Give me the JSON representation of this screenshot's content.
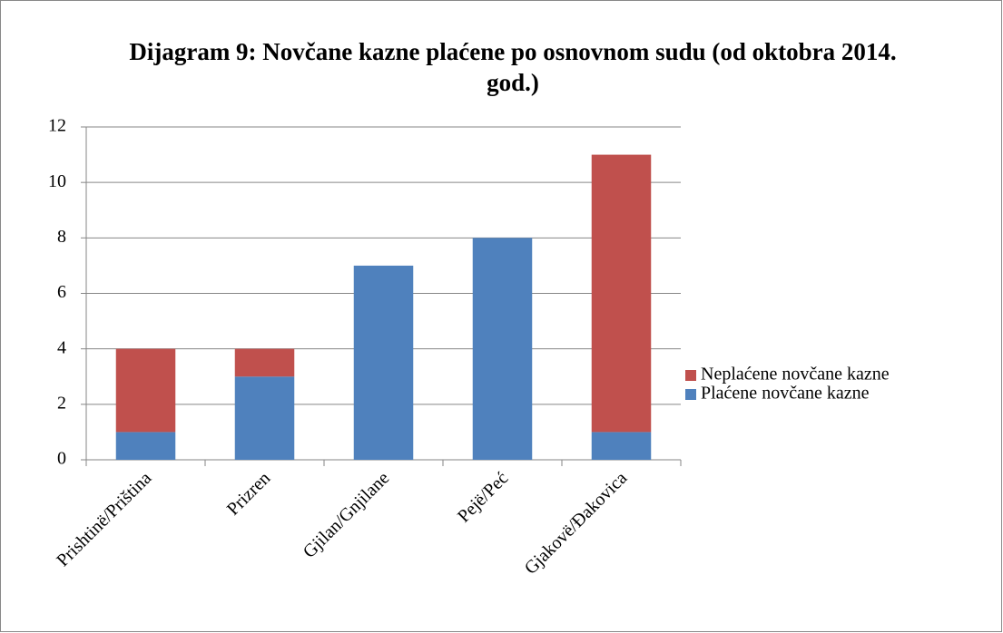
{
  "chart_data": {
    "type": "bar",
    "stacked": true,
    "title": "Dijagram 9: Novčane kazne plaćene po osnovnom sudu (od oktobra 2014. god.)",
    "categories": [
      "Prishtinë/Priština",
      "Prizren",
      "Gjilan/Gnjilane",
      "Pejë/Peć",
      "Gjakovë/Đakovica"
    ],
    "series": [
      {
        "name": "Plaćene novčane kazne",
        "color": "#4f81bd",
        "values": [
          1,
          3,
          7,
          8,
          1
        ]
      },
      {
        "name": "Neplaćene novčane kazne",
        "color": "#c0504d",
        "values": [
          3,
          1,
          0,
          0,
          10
        ]
      }
    ],
    "ylim": [
      0,
      12
    ],
    "yticks": [
      0,
      2,
      4,
      6,
      8,
      10,
      12
    ],
    "grid": true,
    "legend": "right"
  }
}
